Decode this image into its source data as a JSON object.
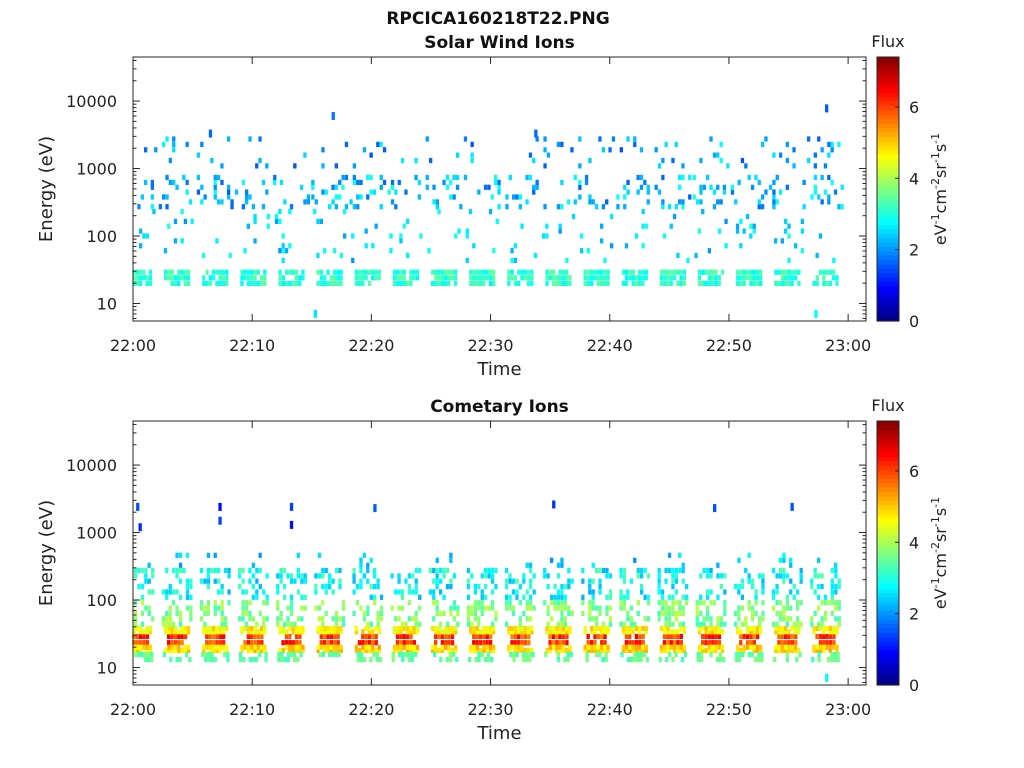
{
  "figure": {
    "title": "RPCICA160218T22.PNG"
  },
  "colors": {
    "background": "#ffffff",
    "axis": "#262626",
    "text": "#222222"
  },
  "colorbar": {
    "label": "Flux",
    "unit_label": "eV-1cm-2sr-1s-1",
    "ticks": [
      0,
      2,
      4,
      6
    ],
    "range": [
      0,
      7.4
    ],
    "colormap": "jet"
  },
  "chart_data": [
    {
      "type": "heatmap",
      "title": "Solar Wind Ions",
      "xlabel": "Time",
      "ylabel": "Energy (eV)",
      "yscale": "log",
      "ylim": [
        5.5,
        45000
      ],
      "xlim": [
        "22:00",
        "23:01:30"
      ],
      "x_ticks": [
        "22:00",
        "22:10",
        "22:20",
        "22:30",
        "22:40",
        "22:50",
        "23:00"
      ],
      "y_ticks": [
        10,
        100,
        1000,
        10000
      ],
      "y_tick_labels": [
        "10",
        "100",
        "1000",
        "10000"
      ],
      "grid": false,
      "sweep_period_min": 3.2,
      "bands": [
        {
          "e_min": 18,
          "e_max": 32,
          "flux_min": 2.7,
          "flux_max": 3.5,
          "density": 0.85,
          "width_min": 2.2
        },
        {
          "e_min": 40,
          "e_max": 250,
          "flux_min": 2.0,
          "flux_max": 3.0,
          "density": 0.06,
          "width_min": 2.8
        },
        {
          "e_min": 250,
          "e_max": 800,
          "flux_min": 1.6,
          "flux_max": 3.0,
          "density": 0.16,
          "width_min": 3.1
        },
        {
          "e_min": 1000,
          "e_max": 3000,
          "flux_min": 1.5,
          "flux_max": 2.8,
          "density": 0.07,
          "width_min": 3.1
        }
      ],
      "extra_points": [
        {
          "t_min": 15.3,
          "e": 7,
          "flux": 2.6
        },
        {
          "t_min": 16.8,
          "e": 6000,
          "flux": 1.8
        },
        {
          "t_min": 58.2,
          "e": 7800,
          "flux": 1.6
        },
        {
          "t_min": 57.3,
          "e": 7,
          "flux": 2.8
        },
        {
          "t_min": 6.5,
          "e": 3300,
          "flux": 1.7
        },
        {
          "t_min": 33.8,
          "e": 3300,
          "flux": 1.7
        }
      ]
    },
    {
      "type": "heatmap",
      "title": "Cometary Ions",
      "xlabel": "Time",
      "ylabel": "Energy (eV)",
      "yscale": "log",
      "ylim": [
        5.5,
        45000
      ],
      "xlim": [
        "22:00",
        "23:01:30"
      ],
      "x_ticks": [
        "22:00",
        "22:10",
        "22:20",
        "22:30",
        "22:40",
        "22:50",
        "23:00"
      ],
      "y_ticks": [
        10,
        100,
        1000,
        10000
      ],
      "y_tick_labels": [
        "10",
        "100",
        "1000",
        "10000"
      ],
      "grid": false,
      "sweep_period_min": 3.2,
      "bands": [
        {
          "e_min": 21,
          "e_max": 32,
          "flux_min": 5.5,
          "flux_max": 6.6,
          "density": 0.95,
          "width_min": 1.7
        },
        {
          "e_min": 17,
          "e_max": 21,
          "flux_min": 4.5,
          "flux_max": 5.3,
          "density": 0.9,
          "width_min": 2.2
        },
        {
          "e_min": 32,
          "e_max": 40,
          "flux_min": 4.3,
          "flux_max": 5.1,
          "density": 0.85,
          "width_min": 2.2
        },
        {
          "e_min": 12,
          "e_max": 17,
          "flux_min": 3.2,
          "flux_max": 3.8,
          "density": 0.5,
          "width_min": 2.4
        },
        {
          "e_min": 40,
          "e_max": 100,
          "flux_min": 3.2,
          "flux_max": 4.2,
          "density": 0.45,
          "width_min": 2.6
        },
        {
          "e_min": 100,
          "e_max": 300,
          "flux_min": 2.2,
          "flux_max": 3.4,
          "density": 0.38,
          "width_min": 2.6
        },
        {
          "e_min": 300,
          "e_max": 500,
          "flux_min": 1.9,
          "flux_max": 2.8,
          "density": 0.1,
          "width_min": 2.0
        }
      ],
      "extra_points": [
        {
          "t_min": 0.4,
          "e": 2400,
          "flux": 1.5
        },
        {
          "t_min": 0.6,
          "e": 1200,
          "flux": 1.2
        },
        {
          "t_min": 7.3,
          "e": 2400,
          "flux": 1.0
        },
        {
          "t_min": 7.3,
          "e": 1500,
          "flux": 1.4
        },
        {
          "t_min": 13.3,
          "e": 2400,
          "flux": 1.4
        },
        {
          "t_min": 13.3,
          "e": 1300,
          "flux": 1.0
        },
        {
          "t_min": 20.3,
          "e": 2300,
          "flux": 1.6
        },
        {
          "t_min": 35.3,
          "e": 2600,
          "flux": 1.3
        },
        {
          "t_min": 48.8,
          "e": 2300,
          "flux": 1.5
        },
        {
          "t_min": 55.3,
          "e": 2400,
          "flux": 1.5
        },
        {
          "t_min": 58.2,
          "e": 7,
          "flux": 2.8
        }
      ]
    }
  ]
}
